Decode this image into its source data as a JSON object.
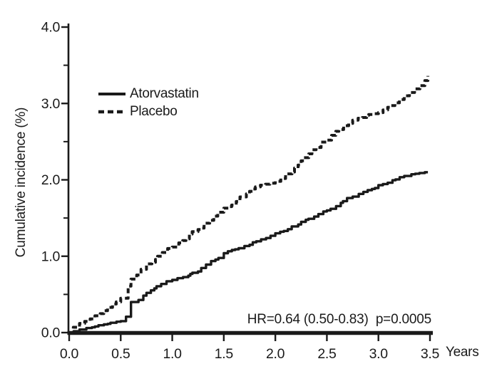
{
  "figure": {
    "y_axis_label": "Cumulative incidence (%)",
    "x_axis_unit": "Years",
    "annotation": "HR=0.64 (0.50-0.83)  p=0.0005",
    "legend": [
      {
        "label": "Atorvastatin",
        "style": "solid"
      },
      {
        "label": "Placebo",
        "style": "dashed"
      }
    ],
    "colors": {
      "ink": "#1a1a1a",
      "background": "#ffffff"
    }
  },
  "chart_data": {
    "type": "line",
    "subtype": "kaplan-meier-cumulative-incidence-steps",
    "title": "",
    "xlabel": "Years",
    "ylabel": "Cumulative incidence (%)",
    "xlim": [
      0,
      3.5
    ],
    "ylim": [
      0,
      4.0
    ],
    "grid": false,
    "legend_position": "inside-upper-left",
    "x_ticks": [
      0.0,
      0.5,
      1.0,
      1.5,
      2.0,
      2.5,
      3.0,
      3.5
    ],
    "x_tick_labels": [
      "0.0",
      "0.5",
      "1.0",
      "1.5",
      "2.0",
      "2.5",
      "3.0",
      "3.5"
    ],
    "y_ticks": [
      0.0,
      1.0,
      2.0,
      3.0,
      4.0
    ],
    "y_tick_labels": [
      "0.0",
      "1.0",
      "2.0",
      "3.0",
      "4.0"
    ],
    "y_minor_ticks": [
      0.5,
      1.5,
      2.5,
      3.5
    ],
    "x": [
      0,
      0.1,
      0.25,
      0.5,
      0.6,
      0.75,
      1.0,
      1.25,
      1.5,
      1.75,
      2.0,
      2.25,
      2.5,
      2.75,
      3.0,
      3.25,
      3.45,
      3.48
    ],
    "series": [
      {
        "name": "Atorvastatin",
        "line": "solid",
        "values": [
          0,
          0.04,
          0.08,
          0.15,
          0.4,
          0.52,
          0.69,
          0.8,
          1.04,
          1.15,
          1.3,
          1.45,
          1.6,
          1.78,
          1.93,
          2.05,
          2.1,
          2.1
        ]
      },
      {
        "name": "Placebo",
        "line": "dashed",
        "values": [
          0,
          0.12,
          0.22,
          0.45,
          0.7,
          0.9,
          1.12,
          1.35,
          1.63,
          1.85,
          1.98,
          2.25,
          2.52,
          2.78,
          2.88,
          3.1,
          3.3,
          3.36
        ]
      }
    ],
    "annotation": "HR=0.64 (0.50-0.83)  p=0.0005"
  }
}
